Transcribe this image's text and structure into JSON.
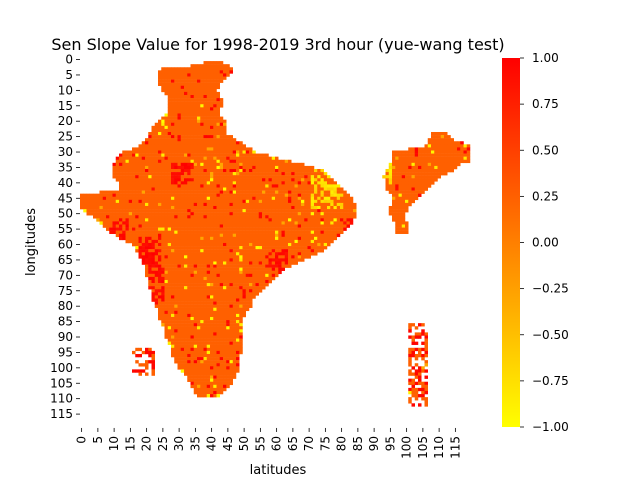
{
  "chart_data": {
    "type": "heatmap",
    "title": "Sen Slope Value for 1998-2019 3rd hour (yue-wang test)",
    "xlabel": "latitudes",
    "ylabel": "longitudes",
    "x_tick_labels": [
      "0",
      "5",
      "10",
      "15",
      "20",
      "25",
      "30",
      "35",
      "40",
      "45",
      "50",
      "55",
      "60",
      "65",
      "70",
      "75",
      "80",
      "85",
      "90",
      "95",
      "100",
      "105",
      "110",
      "115"
    ],
    "y_tick_labels": [
      "0",
      "5",
      "10",
      "15",
      "20",
      "25",
      "30",
      "35",
      "40",
      "45",
      "50",
      "55",
      "60",
      "65",
      "70",
      "75",
      "80",
      "85",
      "90",
      "95",
      "100",
      "105",
      "110",
      "115"
    ],
    "grid_size": [
      120,
      120
    ],
    "colorbar": {
      "range": [
        -1.0,
        1.0
      ],
      "tick_labels": [
        "1.00",
        "0.75",
        "0.50",
        "0.25",
        "0.00",
        "−0.25",
        "−0.50",
        "−0.75",
        "−1.00"
      ],
      "colormap": "autumn_r",
      "low_color": "#ffff00",
      "high_color": "#ff0000"
    },
    "dominant_value": 0.25,
    "mainland_extent_rows": [
      [
        1,
        38,
        43
      ],
      [
        2,
        34,
        45
      ],
      [
        3,
        25,
        46
      ],
      [
        4,
        24,
        46
      ],
      [
        6,
        24,
        44
      ],
      [
        8,
        24,
        42
      ],
      [
        10,
        25,
        41
      ],
      [
        12,
        27,
        42
      ],
      [
        14,
        27,
        43
      ],
      [
        16,
        27,
        42
      ],
      [
        18,
        26,
        42
      ],
      [
        20,
        24,
        44
      ],
      [
        22,
        22,
        44
      ],
      [
        24,
        21,
        44
      ],
      [
        26,
        20,
        47
      ],
      [
        28,
        18,
        50
      ],
      [
        30,
        13,
        53
      ],
      [
        32,
        11,
        60
      ],
      [
        34,
        10,
        68
      ],
      [
        36,
        10,
        74
      ],
      [
        38,
        10,
        76
      ],
      [
        40,
        12,
        78
      ],
      [
        42,
        12,
        80
      ],
      [
        44,
        0,
        82
      ],
      [
        46,
        0,
        83
      ],
      [
        48,
        0,
        84
      ],
      [
        50,
        2,
        84
      ],
      [
        52,
        5,
        83
      ],
      [
        54,
        7,
        82
      ],
      [
        56,
        9,
        80
      ],
      [
        58,
        12,
        78
      ],
      [
        60,
        16,
        76
      ],
      [
        62,
        17,
        74
      ],
      [
        64,
        18,
        70
      ],
      [
        66,
        19,
        66
      ],
      [
        68,
        20,
        62
      ],
      [
        70,
        20,
        60
      ],
      [
        72,
        21,
        58
      ],
      [
        74,
        21,
        56
      ],
      [
        76,
        22,
        54
      ],
      [
        78,
        22,
        52
      ],
      [
        80,
        23,
        52
      ],
      [
        82,
        24,
        50
      ],
      [
        84,
        24,
        49
      ],
      [
        86,
        25,
        49
      ],
      [
        88,
        26,
        49
      ],
      [
        90,
        26,
        49
      ],
      [
        92,
        27,
        49
      ],
      [
        94,
        28,
        49
      ],
      [
        96,
        28,
        48
      ],
      [
        98,
        29,
        48
      ],
      [
        100,
        30,
        48
      ],
      [
        102,
        32,
        47
      ],
      [
        104,
        33,
        46
      ],
      [
        106,
        34,
        45
      ],
      [
        108,
        35,
        43
      ],
      [
        109,
        36,
        42
      ]
    ],
    "northeast_extent_rows": [
      [
        24,
        108,
        112
      ],
      [
        26,
        107,
        114
      ],
      [
        28,
        106,
        120
      ],
      [
        30,
        96,
        121
      ],
      [
        32,
        96,
        121
      ],
      [
        34,
        95,
        116
      ],
      [
        36,
        94,
        114
      ],
      [
        38,
        93,
        110
      ],
      [
        40,
        94,
        108
      ],
      [
        42,
        94,
        106
      ],
      [
        44,
        96,
        104
      ],
      [
        46,
        96,
        102
      ],
      [
        48,
        95,
        100
      ],
      [
        50,
        95,
        99
      ],
      [
        52,
        96,
        99
      ],
      [
        54,
        97,
        100
      ],
      [
        56,
        97,
        100
      ]
    ],
    "islands": [
      {
        "row_start": 86,
        "row_end": 112,
        "col_start": 101,
        "col_end": 106
      },
      {
        "row_start": 94,
        "row_end": 102,
        "col_start": 16,
        "col_end": 22
      }
    ],
    "yellow_patches": [
      {
        "row_start": 34,
        "row_end": 40,
        "col_start": 83,
        "col_end": 95
      },
      {
        "row_start": 36,
        "row_end": 48,
        "col_start": 71,
        "col_end": 80
      }
    ],
    "red_patches": [
      {
        "row_start": 58,
        "row_end": 68,
        "col_start": 18,
        "col_end": 24
      },
      {
        "row_start": 68,
        "row_end": 78,
        "col_start": 21,
        "col_end": 25
      },
      {
        "row_start": 34,
        "row_end": 40,
        "col_start": 28,
        "col_end": 34
      },
      {
        "row_start": 62,
        "row_end": 68,
        "col_start": 57,
        "col_end": 63
      },
      {
        "row_start": 52,
        "row_end": 56,
        "col_start": 81,
        "col_end": 85
      },
      {
        "row_start": 52,
        "row_end": 58,
        "col_start": 10,
        "col_end": 14
      }
    ]
  }
}
